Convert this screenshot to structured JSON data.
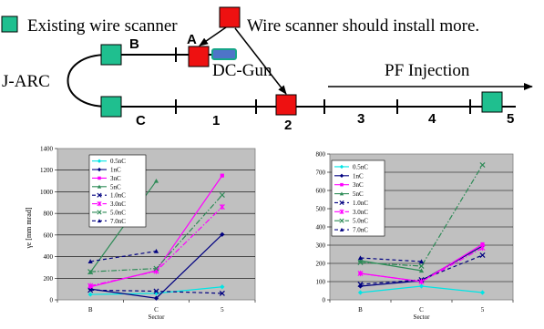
{
  "legend_top": {
    "existing_label": "Existing wire scanner",
    "install_label": "Wire scanner should install more.",
    "existing_color": "#1fbf8f",
    "install_color": "#ee1111"
  },
  "beamline": {
    "label_b": "B",
    "label_a": "A",
    "label_c": "C",
    "label_jarc": "J-ARC",
    "dc_gun": "DC-Gun",
    "pf_injection": "PF Injection",
    "sector_1": "1",
    "sector_2": "2",
    "sector_3": "3",
    "sector_4": "4",
    "sector_5": "5",
    "dc_gun_color": "#4e74c8"
  },
  "chart_data": [
    {
      "type": "line",
      "categories": [
        "B",
        "C",
        "5"
      ],
      "xlabel": "Sector",
      "ylabel": "γε",
      "ylabel_unit": "[mm mrad]",
      "ylim": [
        0,
        1400
      ],
      "yticks": [
        0,
        200,
        400,
        600,
        800,
        1000,
        1200,
        1400
      ],
      "grid": true,
      "legend": "top-left",
      "series": [
        {
          "name": "0.5nC",
          "values": [
            50,
            60,
            120
          ],
          "color": "#00e5e5",
          "dash": "solid",
          "marker": "diamond"
        },
        {
          "name": "1nC",
          "values": [
            100,
            15,
            605
          ],
          "color": "#000080",
          "dash": "solid",
          "marker": "diamond"
        },
        {
          "name": "3nC",
          "values": [
            120,
            270,
            1150
          ],
          "color": "#ff00ff",
          "dash": "solid",
          "marker": "square"
        },
        {
          "name": "5nC",
          "values": [
            255,
            1100,
            null
          ],
          "color": "#2e8b57",
          "dash": "solid",
          "marker": "triangle"
        },
        {
          "name": "1.0nC",
          "values": [
            90,
            80,
            60
          ],
          "color": "#000080",
          "dash": "dash",
          "marker": "x"
        },
        {
          "name": "3.0nC",
          "values": [
            130,
            265,
            860
          ],
          "color": "#ff00ff",
          "dash": "dashdot",
          "marker": "star"
        },
        {
          "name": "5.0nC",
          "values": [
            260,
            290,
            970
          ],
          "color": "#2e8b57",
          "dash": "dashdot",
          "marker": "x"
        },
        {
          "name": "7.0nC",
          "values": [
            355,
            450,
            null
          ],
          "color": "#000080",
          "dash": "dash",
          "marker": "triangle"
        }
      ]
    },
    {
      "type": "line",
      "categories": [
        "B",
        "C",
        "5"
      ],
      "xlabel": "Sector",
      "ylabel": "",
      "ylim": [
        0,
        800
      ],
      "yticks": [
        0,
        100,
        200,
        300,
        400,
        500,
        600,
        700,
        800
      ],
      "grid": true,
      "legend": "top-left",
      "series": [
        {
          "name": "0.5nC",
          "values": [
            40,
            75,
            40
          ],
          "color": "#00e5e5",
          "dash": "solid",
          "marker": "diamond"
        },
        {
          "name": "1nC",
          "values": [
            75,
            105,
            295
          ],
          "color": "#000080",
          "dash": "solid",
          "marker": "diamond"
        },
        {
          "name": "3nC",
          "values": [
            145,
            100,
            305
          ],
          "color": "#ff00ff",
          "dash": "solid",
          "marker": "square"
        },
        {
          "name": "5nC",
          "values": [
            215,
            160,
            null
          ],
          "color": "#2e8b57",
          "dash": "solid",
          "marker": "triangle"
        },
        {
          "name": "1.0nC",
          "values": [
            85,
            110,
            245
          ],
          "color": "#000080",
          "dash": "dash",
          "marker": "x"
        },
        {
          "name": "3.0nC",
          "values": [
            145,
            100,
            285
          ],
          "color": "#ff00ff",
          "dash": "dashdot",
          "marker": "star"
        },
        {
          "name": "5.0nC",
          "values": [
            205,
            185,
            740
          ],
          "color": "#2e8b57",
          "dash": "dashdot",
          "marker": "x"
        },
        {
          "name": "7.0nC",
          "values": [
            230,
            210,
            null
          ],
          "color": "#000080",
          "dash": "dash",
          "marker": "triangle"
        }
      ]
    }
  ]
}
